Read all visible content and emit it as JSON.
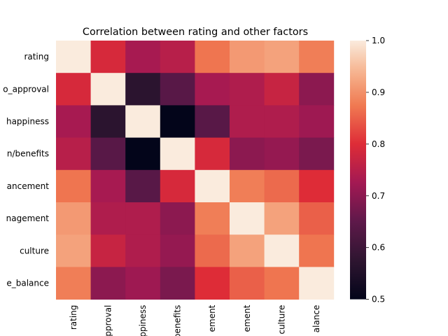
{
  "chart_data": {
    "type": "heatmap",
    "title": "Correlation between rating and other factors",
    "row_labels": [
      "rating",
      "o_approval",
      "happiness",
      "n/benefits",
      "ancement",
      "nagement",
      "culture",
      "e_balance"
    ],
    "col_labels": [
      "rating",
      "pproval",
      "ppiness",
      "benefits",
      "ement",
      "ement",
      "culture",
      "alance"
    ],
    "values": [
      [
        1.0,
        0.79,
        0.73,
        0.75,
        0.87,
        0.91,
        0.92,
        0.88
      ],
      [
        0.79,
        1.0,
        0.57,
        0.64,
        0.73,
        0.74,
        0.77,
        0.7
      ],
      [
        0.73,
        0.57,
        1.0,
        0.5,
        0.64,
        0.74,
        0.74,
        0.72
      ],
      [
        0.75,
        0.64,
        0.5,
        1.0,
        0.79,
        0.7,
        0.71,
        0.68
      ],
      [
        0.87,
        0.73,
        0.64,
        0.79,
        1.0,
        0.88,
        0.86,
        0.8
      ],
      [
        0.91,
        0.74,
        0.74,
        0.7,
        0.88,
        1.0,
        0.92,
        0.85
      ],
      [
        0.92,
        0.77,
        0.74,
        0.71,
        0.86,
        0.92,
        1.0,
        0.87
      ],
      [
        0.88,
        0.7,
        0.72,
        0.68,
        0.8,
        0.85,
        0.87,
        1.0
      ]
    ],
    "colorbar": {
      "min": 0.5,
      "max": 1.0,
      "ticks": [
        "0.5",
        "0.6",
        "0.7",
        "0.8",
        "0.9",
        "1.0"
      ]
    },
    "colormap": "rocket",
    "grid": false
  }
}
